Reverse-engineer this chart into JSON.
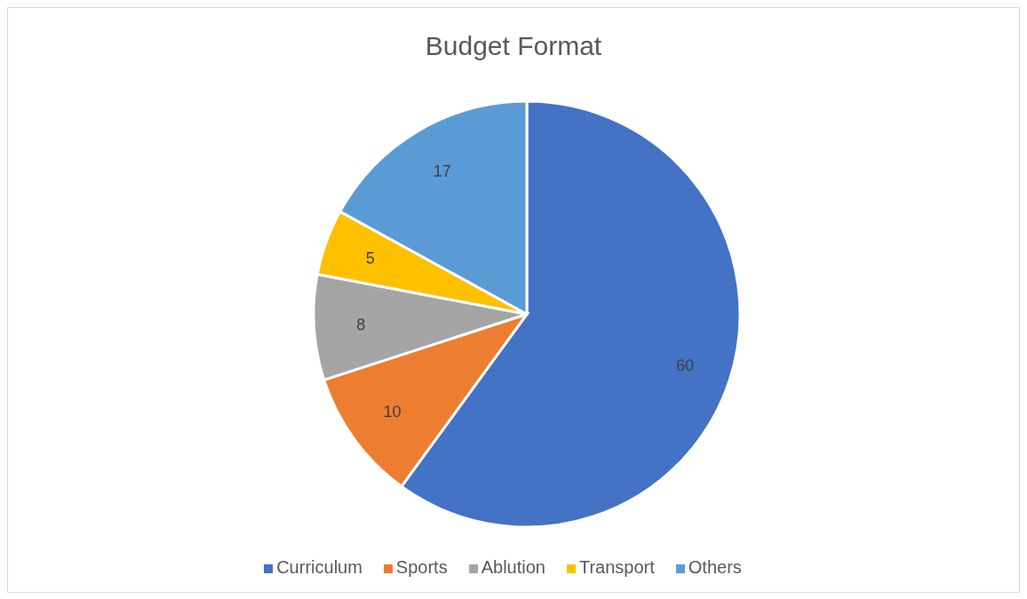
{
  "chart_data": {
    "type": "pie",
    "title": "Budget Format",
    "categories": [
      "Curriculum",
      "Sports",
      "Ablution",
      "Transport",
      "Others"
    ],
    "values": [
      60,
      10,
      8,
      5,
      17
    ],
    "colors": [
      "#4472c4",
      "#ed7d31",
      "#a5a5a5",
      "#ffc000",
      "#5b9bd5"
    ],
    "data_labels": true,
    "legend": "bottom"
  }
}
